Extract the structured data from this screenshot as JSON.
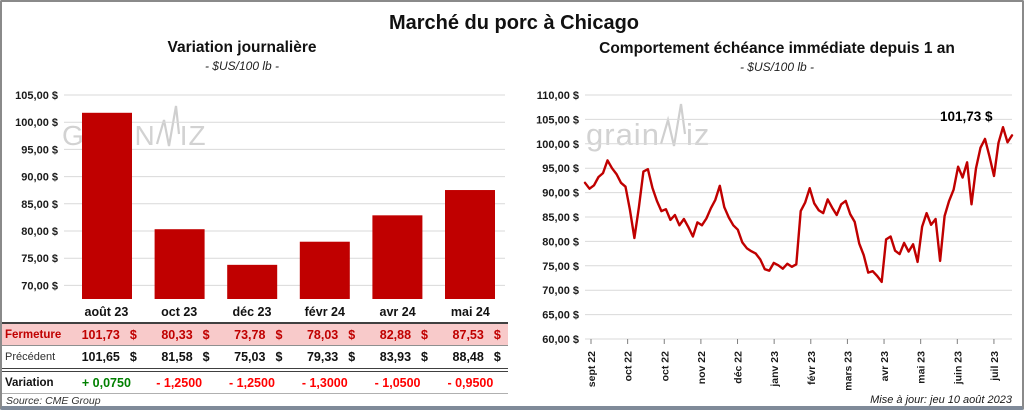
{
  "page": {
    "title": "Marché du porc à Chicago",
    "source": "Source: CME Group",
    "updated": "Mise à jour: jeu 10 août 2023"
  },
  "watermark": {
    "left_pre": "GRAIN",
    "left_post": "IZ",
    "right_pre": "grain",
    "right_post": "iz"
  },
  "colors": {
    "bar": "#C00000",
    "line": "#C00000",
    "gridline": "#D9D9D9",
    "fermeture_bg": "#F8CACA",
    "fermeture_text": "#C00000",
    "variation_up": "#008000",
    "variation_down": "#FF0000"
  },
  "chart_data": [
    {
      "id": "daily-variation",
      "type": "bar",
      "title": "Variation  journalière",
      "subtitle": "- $US/100 lb -",
      "categories": [
        "août 23",
        "oct 23",
        "déc 23",
        "févr 24",
        "avr 24",
        "mai 24"
      ],
      "values": [
        101.73,
        80.33,
        73.78,
        78.03,
        82.88,
        87.53
      ],
      "bar_color": "#C00000",
      "ylim": [
        67.5,
        105
      ],
      "ytick_step": 5,
      "ytick_labels": [
        "105,00 $",
        "100,00 $",
        "95,00 $",
        "90,00 $",
        "85,00 $",
        "80,00 $",
        "75,00 $",
        "70,00 $"
      ],
      "grid": true,
      "table": {
        "currency": "$",
        "rows": [
          {
            "label": "Fermeture",
            "style": "fermeture",
            "cells": [
              "101,73",
              "80,33",
              "73,78",
              "78,03",
              "82,88",
              "87,53"
            ]
          },
          {
            "label": "Précédent",
            "style": "precedent",
            "cells": [
              "101,65",
              "81,58",
              "75,03",
              "79,33",
              "83,93",
              "88,48"
            ]
          },
          {
            "label": "Variation",
            "style": "variation",
            "cells": [
              "+ 0,0750",
              "- 1,2500",
              "- 1,2500",
              "- 1,3000",
              "- 1,0500",
              "- 0,9500"
            ],
            "cell_colors": [
              "#008000",
              "#FF0000",
              "#FF0000",
              "#FF0000",
              "#FF0000",
              "#FF0000"
            ]
          }
        ]
      }
    },
    {
      "id": "immediate-contract",
      "type": "line",
      "title": "Comportement  échéance immédiate depuis 1 an",
      "subtitle": "- $US/100 lb -",
      "line_color": "#C00000",
      "ylim": [
        60,
        110
      ],
      "ytick_step": 5,
      "ytick_labels": [
        "110,00 $",
        "105,00 $",
        "100,00 $",
        "95,00 $",
        "90,00 $",
        "85,00 $",
        "80,00 $",
        "75,00 $",
        "70,00 $",
        "65,00 $",
        "60,00 $"
      ],
      "xtick_labels": [
        "sept 22",
        "oct 22",
        "oct 22",
        "nov 22",
        "déc 22",
        "janv 23",
        "févr 23",
        "mars 23",
        "avr 23",
        "mai 23",
        "juin 23",
        "juil 23"
      ],
      "grid": true,
      "end_label": "101,73 $",
      "values_note": "weekly closes, approximate, read from plot",
      "values": [
        92.0,
        90.8,
        91.5,
        93.2,
        94.0,
        96.6,
        95.0,
        93.8,
        92.0,
        91.2,
        86.5,
        80.7,
        87.0,
        94.3,
        94.8,
        91.0,
        88.3,
        86.2,
        86.6,
        84.4,
        85.4,
        83.3,
        84.6,
        82.9,
        81.0,
        83.9,
        83.3,
        84.7,
        86.8,
        88.5,
        91.4,
        87.0,
        84.9,
        83.3,
        82.4,
        79.8,
        78.6,
        78.0,
        77.5,
        76.3,
        74.3,
        74.0,
        75.6,
        75.1,
        74.4,
        75.4,
        74.8,
        75.3,
        86.2,
        88.0,
        90.9,
        87.8,
        86.4,
        85.8,
        88.6,
        86.9,
        85.4,
        87.6,
        88.3,
        85.6,
        84.0,
        79.6,
        77.2,
        73.6,
        73.9,
        72.9,
        71.7,
        80.4,
        81.0,
        78.1,
        77.4,
        79.7,
        77.9,
        79.4,
        75.8,
        83.0,
        85.8,
        83.4,
        84.6,
        76.0,
        85.2,
        88.3,
        90.6,
        95.3,
        93.1,
        96.2,
        87.6,
        95.0,
        99.2,
        101.0,
        97.4,
        93.4,
        100.2,
        103.4,
        100.3,
        101.73
      ]
    }
  ]
}
